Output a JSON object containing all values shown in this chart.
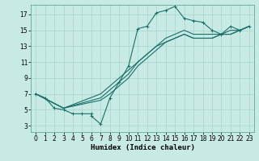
{
  "xlabel": "Humidex (Indice chaleur)",
  "bg_color": "#c8eae4",
  "grid_color": "#a8d4cc",
  "line_color": "#1a7068",
  "xlim": [
    -0.5,
    23.5
  ],
  "ylim": [
    2.2,
    18.2
  ],
  "xticks": [
    0,
    1,
    2,
    3,
    4,
    5,
    6,
    7,
    8,
    9,
    10,
    11,
    12,
    13,
    14,
    15,
    16,
    17,
    18,
    19,
    20,
    21,
    22,
    23
  ],
  "yticks": [
    3,
    5,
    7,
    9,
    11,
    13,
    15,
    17
  ],
  "line1_x": [
    0,
    1,
    2,
    3,
    4,
    5,
    6,
    6,
    7,
    8,
    9,
    10,
    11,
    12,
    13,
    14,
    15,
    16,
    17,
    18,
    19,
    20,
    21,
    22,
    23
  ],
  "line1_y": [
    7,
    6.5,
    5.2,
    5,
    4.5,
    4.5,
    4.5,
    4.2,
    3.2,
    6.5,
    8.5,
    10.5,
    15.2,
    15.5,
    17.2,
    17.5,
    18,
    16.5,
    16.2,
    16,
    15,
    14.5,
    15.5,
    15,
    15.5
  ],
  "line2_x": [
    0,
    3,
    7,
    8,
    9,
    10,
    11,
    12,
    13,
    14,
    15,
    16,
    17,
    18,
    19,
    20,
    21,
    22,
    23
  ],
  "line2_y": [
    7,
    5.2,
    6.5,
    7.5,
    8.5,
    9.5,
    11,
    12,
    13,
    14,
    14.5,
    15,
    14.5,
    14.5,
    14.5,
    14.5,
    15,
    15,
    15.5
  ],
  "line3_x": [
    0,
    3,
    7,
    8,
    9,
    10,
    11,
    12,
    13,
    14,
    15,
    16,
    17,
    18,
    19,
    20,
    21,
    22,
    23
  ],
  "line3_y": [
    7,
    5.2,
    6.2,
    7,
    8,
    9,
    10.5,
    11.5,
    12.5,
    13.5,
    14,
    14.5,
    14,
    14,
    14,
    14.5,
    14.5,
    15,
    15.5
  ],
  "line4_x": [
    0,
    3,
    7,
    8,
    9,
    10,
    11,
    12,
    13,
    14,
    15,
    16,
    17,
    18,
    19,
    20,
    21,
    22,
    23
  ],
  "line4_y": [
    7,
    5.2,
    7,
    8,
    9,
    10,
    11,
    12,
    13,
    13.5,
    14,
    14.5,
    14,
    14,
    14,
    14.5,
    14.5,
    15,
    15.5
  ],
  "line1_has_markers": true,
  "line2_has_markers": false,
  "line3_has_markers": false,
  "line4_has_markers": false
}
